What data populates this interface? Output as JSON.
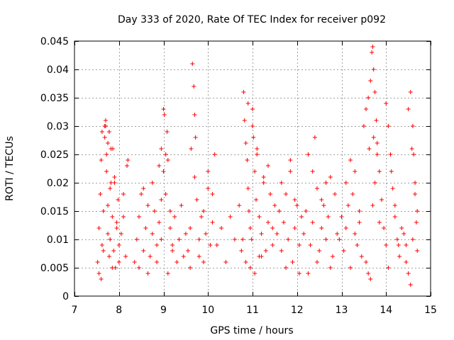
{
  "chart_data": {
    "type": "scatter",
    "title": "Day 333 of 2020, Rate Of TEC Index for receiver p092",
    "xlabel": "GPS time / hours",
    "ylabel": "ROTI / TECUs",
    "xlim": [
      7,
      15
    ],
    "ylim": [
      0,
      0.045
    ],
    "xticks": [
      7,
      8,
      9,
      10,
      11,
      12,
      13,
      14,
      15
    ],
    "xtick_labels": [
      "7",
      "8",
      "9",
      "10",
      "11",
      "12",
      "13",
      "14",
      "15"
    ],
    "yticks": [
      0,
      0.005,
      0.01,
      0.015,
      0.02,
      0.025,
      0.03,
      0.035,
      0.04,
      0.045
    ],
    "ytick_labels": [
      "0",
      "0.005",
      "0.01",
      "0.015",
      "0.02",
      "0.025",
      "0.03",
      "0.035",
      "0.04",
      "0.045"
    ],
    "grid": true,
    "marker": "+",
    "color": "#ff0000",
    "series": [
      {
        "name": "ROTI",
        "x": [
          7.52,
          7.55,
          7.58,
          7.6,
          7.62,
          7.65,
          7.68,
          7.7,
          7.72,
          7.75,
          7.78,
          7.8,
          7.82,
          7.85,
          7.88,
          7.9,
          7.92,
          7.95,
          7.98,
          8.0,
          8.05,
          8.1,
          8.15,
          8.2,
          7.55,
          7.6,
          7.65,
          7.7,
          7.75,
          7.8,
          7.85,
          7.9,
          7.95,
          8.0,
          8.1,
          8.18,
          7.62,
          7.68,
          7.72,
          7.75,
          7.78,
          7.82,
          7.86,
          8.35,
          8.4,
          8.45,
          8.5,
          8.55,
          8.6,
          8.65,
          8.7,
          8.75,
          8.8,
          8.85,
          8.9,
          8.95,
          8.45,
          8.55,
          8.65,
          8.75,
          8.85,
          8.95,
          9.0,
          9.02,
          9.05,
          9.08,
          9.1,
          9.15,
          9.2,
          9.25,
          9.3,
          9.35,
          9.4,
          9.45,
          9.5,
          8.9,
          8.95,
          9.0,
          9.05,
          9.1,
          9.15,
          9.2,
          9.55,
          9.6,
          9.62,
          9.65,
          9.68,
          9.7,
          9.72,
          9.75,
          9.8,
          9.85,
          9.9,
          9.95,
          10.0,
          10.05,
          10.1,
          9.6,
          9.7,
          9.8,
          9.9,
          10.0,
          10.1,
          10.15,
          10.2,
          10.3,
          10.4,
          10.5,
          10.6,
          10.7,
          10.75,
          10.8,
          10.82,
          10.85,
          10.88,
          10.9,
          10.92,
          10.95,
          10.98,
          11.0,
          11.02,
          11.05,
          11.08,
          11.1,
          11.15,
          11.2,
          11.25,
          11.3,
          11.35,
          11.4,
          11.45,
          11.5,
          10.85,
          10.95,
          11.05,
          11.15,
          11.25,
          11.35,
          11.45,
          10.78,
          10.9,
          11.0,
          11.1,
          11.2,
          11.55,
          11.6,
          11.65,
          11.7,
          11.75,
          11.8,
          11.85,
          11.9,
          11.95,
          12.0,
          12.05,
          12.1,
          11.65,
          11.75,
          11.85,
          11.95,
          12.05,
          12.15,
          12.2,
          12.25,
          12.3,
          12.35,
          12.4,
          12.45,
          12.5,
          12.55,
          12.6,
          12.65,
          12.7,
          12.75,
          12.8,
          12.85,
          12.9,
          12.25,
          12.35,
          12.45,
          12.55,
          12.65,
          12.75,
          12.95,
          13.0,
          13.05,
          13.1,
          13.15,
          13.2,
          13.25,
          13.3,
          13.35,
          13.4,
          13.45,
          13.1,
          13.2,
          13.3,
          13.4,
          13.5,
          13.55,
          13.6,
          13.62,
          13.65,
          13.68,
          13.7,
          13.72,
          13.75,
          13.78,
          13.8,
          13.85,
          13.9,
          13.95,
          14.0,
          13.55,
          13.6,
          13.65,
          13.7,
          13.72,
          13.75,
          13.8,
          13.85,
          14.0,
          14.05,
          14.1,
          14.15,
          14.2,
          14.25,
          14.3,
          14.35,
          14.05,
          14.12,
          14.2,
          14.28,
          14.4,
          14.45,
          14.5,
          14.55,
          14.6,
          14.62,
          14.65,
          14.68,
          14.7,
          14.45,
          14.5,
          14.55,
          14.6,
          14.65,
          14.7,
          14.58
        ],
        "y": [
          0.006,
          0.012,
          0.018,
          0.024,
          0.009,
          0.015,
          0.028,
          0.031,
          0.022,
          0.011,
          0.007,
          0.019,
          0.026,
          0.014,
          0.008,
          0.021,
          0.005,
          0.013,
          0.017,
          0.009,
          0.011,
          0.014,
          0.007,
          0.024,
          0.004,
          0.003,
          0.008,
          0.03,
          0.016,
          0.01,
          0.005,
          0.02,
          0.012,
          0.006,
          0.018,
          0.023,
          0.029,
          0.03,
          0.025,
          0.027,
          0.029,
          0.02,
          0.026,
          0.006,
          0.01,
          0.014,
          0.018,
          0.008,
          0.012,
          0.016,
          0.007,
          0.011,
          0.015,
          0.009,
          0.013,
          0.017,
          0.005,
          0.019,
          0.004,
          0.02,
          0.006,
          0.01,
          0.033,
          0.032,
          0.025,
          0.029,
          0.024,
          0.012,
          0.008,
          0.014,
          0.006,
          0.01,
          0.016,
          0.007,
          0.011,
          0.023,
          0.026,
          0.022,
          0.018,
          0.004,
          0.015,
          0.009,
          0.008,
          0.012,
          0.026,
          0.041,
          0.037,
          0.032,
          0.028,
          0.017,
          0.01,
          0.014,
          0.006,
          0.011,
          0.019,
          0.009,
          0.013,
          0.005,
          0.021,
          0.007,
          0.015,
          0.022,
          0.018,
          0.025,
          0.009,
          0.012,
          0.006,
          0.014,
          0.01,
          0.016,
          0.008,
          0.036,
          0.031,
          0.027,
          0.024,
          0.019,
          0.015,
          0.012,
          0.01,
          0.033,
          0.028,
          0.022,
          0.017,
          0.026,
          0.014,
          0.011,
          0.02,
          0.008,
          0.013,
          0.018,
          0.009,
          0.016,
          0.006,
          0.005,
          0.004,
          0.007,
          0.021,
          0.023,
          0.012,
          0.01,
          0.034,
          0.03,
          0.025,
          0.007,
          0.011,
          0.015,
          0.008,
          0.013,
          0.018,
          0.01,
          0.022,
          0.006,
          0.012,
          0.016,
          0.009,
          0.014,
          0.02,
          0.005,
          0.024,
          0.017,
          0.004,
          0.011,
          0.015,
          0.025,
          0.009,
          0.013,
          0.028,
          0.019,
          0.008,
          0.012,
          0.016,
          0.01,
          0.014,
          0.021,
          0.007,
          0.018,
          0.011,
          0.004,
          0.022,
          0.006,
          0.017,
          0.02,
          0.005,
          0.01,
          0.014,
          0.008,
          0.012,
          0.016,
          0.024,
          0.018,
          0.011,
          0.009,
          0.013,
          0.007,
          0.02,
          0.005,
          0.022,
          0.015,
          0.03,
          0.033,
          0.035,
          0.026,
          0.038,
          0.043,
          0.044,
          0.04,
          0.036,
          0.031,
          0.027,
          0.022,
          0.017,
          0.012,
          0.009,
          0.006,
          0.004,
          0.003,
          0.016,
          0.028,
          0.02,
          0.025,
          0.013,
          0.034,
          0.03,
          0.025,
          0.019,
          0.014,
          0.01,
          0.007,
          0.012,
          0.005,
          0.022,
          0.016,
          0.009,
          0.011,
          0.009,
          0.033,
          0.036,
          0.03,
          0.025,
          0.02,
          0.013,
          0.008,
          0.006,
          0.004,
          0.002,
          0.01,
          0.018,
          0.015,
          0.026
        ]
      }
    ]
  }
}
